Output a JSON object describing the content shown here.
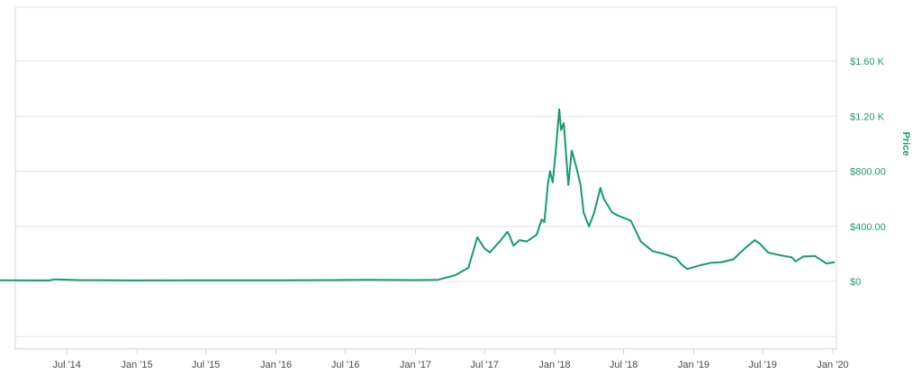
{
  "chart_data": {
    "type": "line",
    "ylabel": "Price",
    "ylim": [
      -480,
      1980
    ],
    "x_tick_labels": [
      "Jul '14",
      "Jan '15",
      "Jul '15",
      "Jan '16",
      "Jul '16",
      "Jan '17",
      "Jul '17",
      "Jan '18",
      "Jul '18",
      "Jan '19",
      "Jul '19",
      "Jan '20"
    ],
    "x_tick_dates": [
      "2014-07-01",
      "2015-01-01",
      "2015-07-01",
      "2016-01-01",
      "2016-07-01",
      "2017-01-01",
      "2017-07-01",
      "2018-01-01",
      "2018-07-01",
      "2019-01-01",
      "2019-07-01",
      "2020-01-01"
    ],
    "y_tick_labels": [
      "$0",
      "$400.00",
      "$800.00",
      "$1.20 K",
      "$1.60 K"
    ],
    "y_tick_values": [
      0,
      400,
      800,
      1200,
      1600
    ],
    "grid": true,
    "colors": {
      "line": "#139b72",
      "axis_text": "#1e9a6e",
      "grid": "#e6e6e6"
    },
    "series": [
      {
        "x": [
          "2014-01-01",
          "2014-05-15",
          "2014-06-01",
          "2014-08-01",
          "2014-10-01",
          "2015-01-01",
          "2015-06-01",
          "2016-01-01",
          "2016-06-01",
          "2016-09-01",
          "2017-01-01",
          "2017-03-01",
          "2017-04-15",
          "2017-05-20",
          "2017-06-12",
          "2017-07-01",
          "2017-07-15",
          "2017-08-10",
          "2017-08-30",
          "2017-09-05",
          "2017-09-15",
          "2017-10-01",
          "2017-10-20",
          "2017-11-15",
          "2017-11-28",
          "2017-12-05",
          "2017-12-14",
          "2017-12-20",
          "2017-12-27",
          "2018-01-05",
          "2018-01-13",
          "2018-01-18",
          "2018-01-25",
          "2018-02-06",
          "2018-02-15",
          "2018-02-25",
          "2018-03-10",
          "2018-03-18",
          "2018-04-01",
          "2018-04-15",
          "2018-05-01",
          "2018-05-10",
          "2018-06-01",
          "2018-06-15",
          "2018-07-20",
          "2018-08-15",
          "2018-09-15",
          "2018-10-15",
          "2018-11-15",
          "2018-12-01",
          "2018-12-15",
          "2019-01-15",
          "2019-02-15",
          "2019-03-15",
          "2019-04-15",
          "2019-05-15",
          "2019-06-10",
          "2019-06-25",
          "2019-07-15",
          "2019-08-15",
          "2019-09-15",
          "2019-09-25",
          "2019-10-15",
          "2019-11-15",
          "2019-12-15",
          "2020-01-05"
        ],
        "values": [
          8,
          7,
          15,
          10,
          9,
          7,
          8,
          8,
          10,
          12,
          10,
          12,
          45,
          100,
          320,
          240,
          210,
          290,
          360,
          330,
          260,
          300,
          290,
          340,
          450,
          430,
          700,
          800,
          720,
          980,
          1250,
          1100,
          1150,
          700,
          950,
          850,
          700,
          500,
          400,
          500,
          680,
          600,
          500,
          480,
          440,
          290,
          220,
          200,
          170,
          120,
          90,
          115,
          135,
          140,
          160,
          240,
          300,
          270,
          210,
          190,
          175,
          145,
          180,
          185,
          130,
          140
        ]
      }
    ]
  }
}
